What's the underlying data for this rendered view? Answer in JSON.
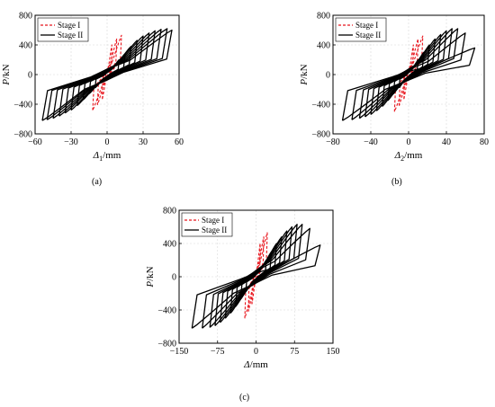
{
  "chart_data": [
    {
      "type": "line",
      "ylabel": "P/kN",
      "xlabel_symbol": "Δ",
      "xlabel_subscript": "1",
      "xlabel_unit": "/mm",
      "xlim": [
        -60,
        60
      ],
      "ylim": [
        -800,
        800
      ],
      "xticks": [
        -60,
        -30,
        0,
        30,
        60
      ],
      "yticks": [
        800,
        400,
        0,
        -400,
        -800
      ],
      "xtick_labels": [
        "−60",
        "−30",
        "0",
        "30",
        "60"
      ],
      "ytick_labels": [
        "800",
        "400",
        "0",
        "−400",
        "−800"
      ],
      "legend_position": "top-left",
      "caption": "(a)",
      "series": [
        {
          "name": "Stage I",
          "style": "dashed",
          "color": "#e8141c",
          "cycles": [
            [
              4,
              400,
              330
            ],
            [
              8,
              480,
              410
            ],
            [
              12,
              530,
              480
            ]
          ]
        },
        {
          "name": "Stage II",
          "style": "solid",
          "color": "#000000",
          "cycles": [
            [
              10,
              200,
              180
            ],
            [
              15,
              280,
              260
            ],
            [
              20,
              380,
              340
            ],
            [
              25,
              460,
              420
            ],
            [
              30,
              520,
              480
            ],
            [
              35,
              560,
              520
            ],
            [
              40,
              590,
              560
            ],
            [
              45,
              610,
              590
            ],
            [
              50,
              620,
              610
            ],
            [
              54,
              600,
              620
            ]
          ]
        }
      ]
    },
    {
      "type": "line",
      "ylabel": "P/kN",
      "xlabel_symbol": "Δ",
      "xlabel_subscript": "2",
      "xlabel_unit": "/mm",
      "xlim": [
        -80,
        80
      ],
      "ylim": [
        -800,
        800
      ],
      "xticks": [
        -80,
        -40,
        0,
        40,
        80
      ],
      "yticks": [
        800,
        400,
        0,
        -400,
        -800
      ],
      "xtick_labels": [
        "−80",
        "−40",
        "0",
        "40",
        "80"
      ],
      "ytick_labels": [
        "800",
        "400",
        "0",
        "−400",
        "−800"
      ],
      "legend_position": "top-left",
      "caption": "(b)",
      "series": [
        {
          "name": "Stage I",
          "style": "dashed",
          "color": "#e8141c",
          "cycles": [
            [
              5,
              400,
              330
            ],
            [
              10,
              480,
              420
            ],
            [
              15,
              520,
              500
            ]
          ]
        },
        {
          "name": "Stage II",
          "style": "solid",
          "color": "#000000",
          "cycles": [
            [
              10,
              200,
              180
            ],
            [
              16,
              300,
              260
            ],
            [
              22,
              400,
              350
            ],
            [
              28,
              480,
              430
            ],
            [
              34,
              540,
              490
            ],
            [
              40,
              590,
              540
            ],
            [
              46,
              620,
              570
            ],
            [
              52,
              620,
              590
            ],
            [
              60,
              560,
              610
            ],
            [
              70,
              360,
              620
            ]
          ]
        }
      ]
    },
    {
      "type": "line",
      "ylabel": "P/kN",
      "xlabel_symbol": "Δ",
      "xlabel_subscript": "",
      "xlabel_unit": "/mm",
      "xlim": [
        -150,
        150
      ],
      "ylim": [
        -800,
        800
      ],
      "xticks": [
        -150,
        -75,
        0,
        75,
        150
      ],
      "yticks": [
        800,
        400,
        0,
        -400,
        -800
      ],
      "xtick_labels": [
        "−150",
        "−75",
        "0",
        "75",
        "150"
      ],
      "ytick_labels": [
        "800",
        "400",
        "0",
        "−400",
        "−800"
      ],
      "legend_position": "top-left",
      "caption": "(c)",
      "series": [
        {
          "name": "Stage I",
          "style": "dashed",
          "color": "#e8141c",
          "cycles": [
            [
              8,
              400,
              330
            ],
            [
              15,
              480,
              420
            ],
            [
              22,
              530,
              500
            ]
          ]
        },
        {
          "name": "Stage II",
          "style": "solid",
          "color": "#000000",
          "cycles": [
            [
              20,
              200,
              180
            ],
            [
              30,
              300,
              270
            ],
            [
              40,
              400,
              360
            ],
            [
              50,
              480,
              440
            ],
            [
              60,
              550,
              500
            ],
            [
              70,
              600,
              550
            ],
            [
              80,
              630,
              590
            ],
            [
              90,
              630,
              610
            ],
            [
              105,
              580,
              620
            ],
            [
              125,
              380,
              620
            ]
          ]
        }
      ]
    }
  ]
}
